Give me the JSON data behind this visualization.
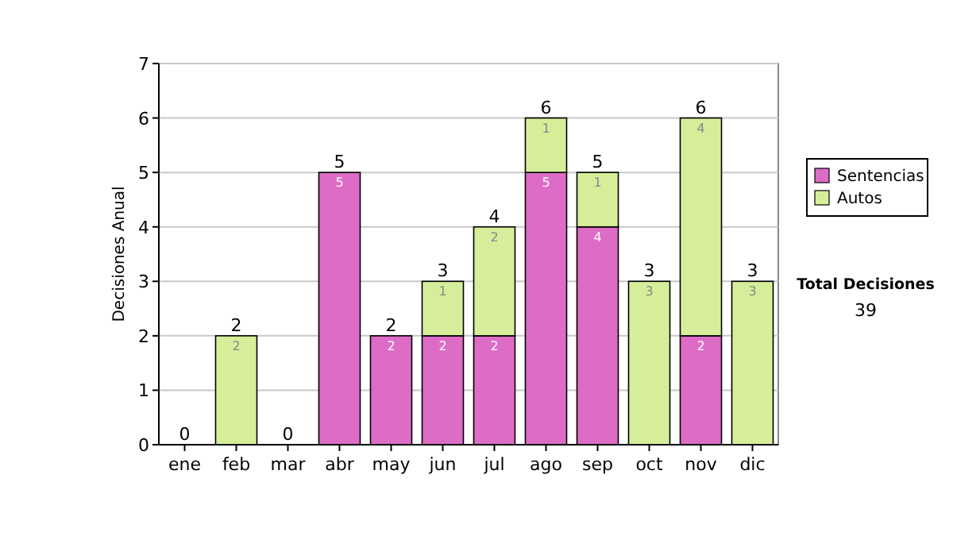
{
  "chart_data": {
    "type": "bar",
    "stacked": true,
    "ylabel": "Decisiones Anual",
    "categories": [
      "ene",
      "feb",
      "mar",
      "abr",
      "may",
      "jun",
      "jul",
      "ago",
      "sep",
      "oct",
      "nov",
      "dic"
    ],
    "series": [
      {
        "name": "Sentencias",
        "color": "#dd6cc6",
        "values": [
          0,
          0,
          0,
          5,
          2,
          2,
          2,
          5,
          4,
          0,
          2,
          0
        ],
        "value_labels": [
          null,
          null,
          null,
          "5",
          "2",
          "2",
          "2",
          "5",
          "4",
          null,
          "2",
          null
        ]
      },
      {
        "name": "Autos",
        "color": "#d6ee9a",
        "values": [
          0,
          2,
          0,
          0,
          0,
          1,
          2,
          1,
          1,
          3,
          4,
          3
        ],
        "value_labels": [
          null,
          "2",
          null,
          null,
          null,
          "1",
          "2",
          "1",
          "1",
          "3",
          "4",
          "3"
        ]
      }
    ],
    "totals": [
      "0",
      "2",
      "0",
      "5",
      "2",
      "3",
      "4",
      "6",
      "5",
      "3",
      "6",
      "3"
    ],
    "ylim": [
      0,
      7
    ],
    "yticks": [
      0,
      1,
      2,
      3,
      4,
      5,
      6,
      7
    ],
    "grid": "y",
    "legend": "right",
    "annotations": [
      "Total Decisiones",
      "39"
    ]
  }
}
